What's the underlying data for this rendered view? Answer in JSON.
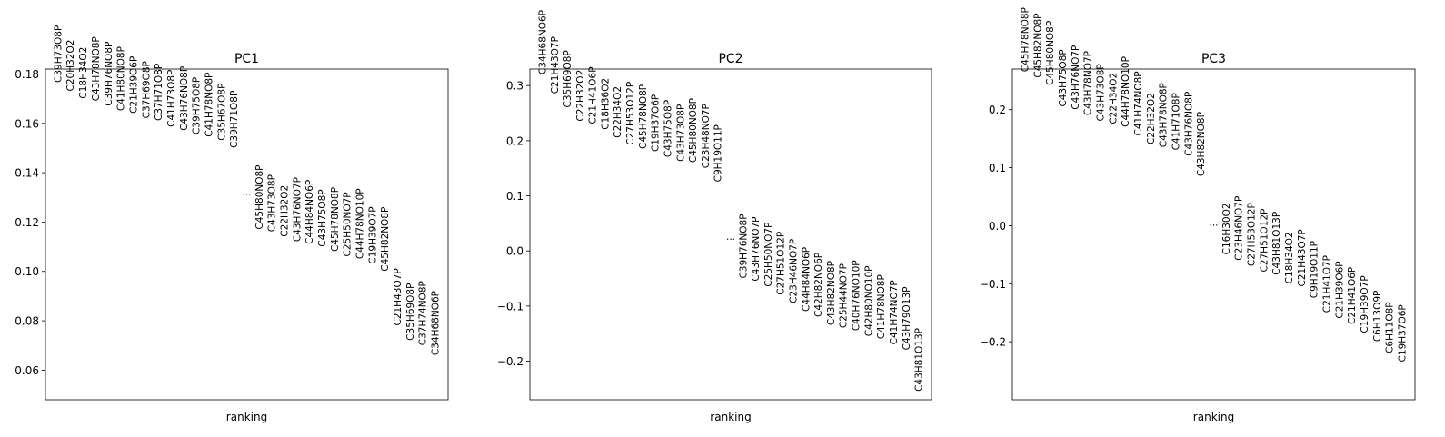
{
  "chart_data": [
    {
      "type": "scatter",
      "title": "PC1",
      "xlabel": "ranking",
      "ylim": [
        0.048,
        0.182
      ],
      "yticks": [
        0.06,
        0.08,
        0.1,
        0.12,
        0.14,
        0.16,
        0.18
      ],
      "ytick_labels": [
        "0.06",
        "0.08",
        "0.10",
        "0.12",
        "0.14",
        "0.16",
        "0.18"
      ],
      "ellipsis": {
        "label": "...",
        "value": 0.131
      },
      "top": [
        {
          "label": "C39H73O8P",
          "value": 0.1765
        },
        {
          "label": "C20H32O2",
          "value": 0.173
        },
        {
          "label": "C18H34O2",
          "value": 0.17
        },
        {
          "label": "C43H78NO8P",
          "value": 0.169
        },
        {
          "label": "C39H76NO8P",
          "value": 0.167
        },
        {
          "label": "C41H80NO8P",
          "value": 0.165
        },
        {
          "label": "C21H39O6P",
          "value": 0.164
        },
        {
          "label": "C37H69O8P",
          "value": 0.162
        },
        {
          "label": "C37H71O8P",
          "value": 0.161
        },
        {
          "label": "C41H73O8P",
          "value": 0.1585
        },
        {
          "label": "C43H76NO8P",
          "value": 0.157
        },
        {
          "label": "C39H75O8P",
          "value": 0.1555
        },
        {
          "label": "C41H78NO8P",
          "value": 0.1545
        },
        {
          "label": "C35H67O8P",
          "value": 0.153
        },
        {
          "label": "C39H71O8P",
          "value": 0.15
        }
      ],
      "bottom": [
        {
          "label": "C45H80NO8P",
          "value": 0.117
        },
        {
          "label": "C43H73O8P",
          "value": 0.116
        },
        {
          "label": "C22H32O2",
          "value": 0.114
        },
        {
          "label": "C43H76NO7P",
          "value": 0.112
        },
        {
          "label": "C44H84NO6P",
          "value": 0.111
        },
        {
          "label": "C43H75O8P",
          "value": 0.11
        },
        {
          "label": "C45H78NO8P",
          "value": 0.108
        },
        {
          "label": "C25H50NO7P",
          "value": 0.106
        },
        {
          "label": "C44H78NO10P",
          "value": 0.105
        },
        {
          "label": "C19H39O7P",
          "value": 0.103
        },
        {
          "label": "C45H82NO8P",
          "value": 0.1
        },
        {
          "label": "C21H43O7P",
          "value": 0.078
        },
        {
          "label": "C35H69O8P",
          "value": 0.072
        },
        {
          "label": "C37H74NO8P",
          "value": 0.07
        },
        {
          "label": "C34H68NO6P",
          "value": 0.066
        }
      ]
    },
    {
      "type": "scatter",
      "title": "PC2",
      "xlabel": "ranking",
      "ylim": [
        -0.27,
        0.33
      ],
      "yticks": [
        -0.2,
        -0.1,
        0.0,
        0.1,
        0.2,
        0.3
      ],
      "ytick_labels": [
        "−0.2",
        "−0.1",
        "0.0",
        "0.1",
        "0.2",
        "0.3"
      ],
      "ellipsis": {
        "label": "...",
        "value": 0.02
      },
      "top": [
        {
          "label": "C34H68NO6P",
          "value": 0.32
        },
        {
          "label": "C21H43O7P",
          "value": 0.285
        },
        {
          "label": "C35H69O8P",
          "value": 0.26
        },
        {
          "label": "C22H32O2",
          "value": 0.235
        },
        {
          "label": "C21H41O6P",
          "value": 0.23
        },
        {
          "label": "C18H36O2",
          "value": 0.22
        },
        {
          "label": "C22H34O2",
          "value": 0.205
        },
        {
          "label": "C27H53O12P",
          "value": 0.192
        },
        {
          "label": "C45H78NO8P",
          "value": 0.185
        },
        {
          "label": "C19H37O6P",
          "value": 0.18
        },
        {
          "label": "C43H75O8P",
          "value": 0.17
        },
        {
          "label": "C43H73O8P",
          "value": 0.162
        },
        {
          "label": "C45H80NO8P",
          "value": 0.16
        },
        {
          "label": "C23H48NO7P",
          "value": 0.15
        },
        {
          "label": "C9H19O11P",
          "value": 0.125
        }
      ],
      "bottom": [
        {
          "label": "C39H76NO8P",
          "value": -0.05
        },
        {
          "label": "C43H76NO7P",
          "value": -0.055
        },
        {
          "label": "C25H50NO7P",
          "value": -0.065
        },
        {
          "label": "C27H51O12P",
          "value": -0.08
        },
        {
          "label": "C23H46NO7P",
          "value": -0.095
        },
        {
          "label": "C44H84NO6P",
          "value": -0.11
        },
        {
          "label": "C42H82NO6P",
          "value": -0.12
        },
        {
          "label": "C43H82NO8P",
          "value": -0.135
        },
        {
          "label": "C25H44NO7P",
          "value": -0.14
        },
        {
          "label": "C40H76NO10P",
          "value": -0.145
        },
        {
          "label": "C42H80NO10P",
          "value": -0.155
        },
        {
          "label": "C41H78NO8P",
          "value": -0.16
        },
        {
          "label": "C41H74NO7P",
          "value": -0.17
        },
        {
          "label": "C43H79O13P",
          "value": -0.18
        },
        {
          "label": "C43H81O13P",
          "value": -0.255
        }
      ]
    },
    {
      "type": "scatter",
      "title": "PC3",
      "xlabel": "ranking",
      "ylim": [
        -0.3,
        0.27
      ],
      "yticks": [
        -0.2,
        -0.1,
        0.0,
        0.1,
        0.2
      ],
      "ytick_labels": [
        "−0.2",
        "−0.1",
        "0.0",
        "0.1",
        "0.2"
      ],
      "ellipsis": {
        "label": "...",
        "value": 0.0
      },
      "top": [
        {
          "label": "C45H78NO8P",
          "value": 0.265
        },
        {
          "label": "C45H82NO8P",
          "value": 0.255
        },
        {
          "label": "C45H80NO8P",
          "value": 0.242
        },
        {
          "label": "C43H75O8P",
          "value": 0.205
        },
        {
          "label": "C43H76NO7P",
          "value": 0.2
        },
        {
          "label": "C43H78NO7P",
          "value": 0.19
        },
        {
          "label": "C43H73O8P",
          "value": 0.18
        },
        {
          "label": "C22H34O2",
          "value": 0.175
        },
        {
          "label": "C44H78NO10P",
          "value": 0.17
        },
        {
          "label": "C41H74NO8P",
          "value": 0.155
        },
        {
          "label": "C22H32O2",
          "value": 0.14
        },
        {
          "label": "C43H78NO8P",
          "value": 0.135
        },
        {
          "label": "C41H71O8P",
          "value": 0.13
        },
        {
          "label": "C43H76NO8P",
          "value": 0.12
        },
        {
          "label": "C43H82NO8P",
          "value": 0.085
        }
      ],
      "bottom": [
        {
          "label": "C16H30O2",
          "value": -0.05
        },
        {
          "label": "C23H46NO7P",
          "value": -0.06
        },
        {
          "label": "C27H53O12P",
          "value": -0.07
        },
        {
          "label": "C27H51O12P",
          "value": -0.08
        },
        {
          "label": "C43H81O13P",
          "value": -0.085
        },
        {
          "label": "C18H34O2",
          "value": -0.1
        },
        {
          "label": "C21H43O7P",
          "value": -0.105
        },
        {
          "label": "C9H19O11P",
          "value": -0.125
        },
        {
          "label": "C21H41O7P",
          "value": -0.15
        },
        {
          "label": "C21H39O6P",
          "value": -0.16
        },
        {
          "label": "C21H41O6P",
          "value": -0.17
        },
        {
          "label": "C19H39O7P",
          "value": -0.185
        },
        {
          "label": "C6H13O9P",
          "value": -0.2
        },
        {
          "label": "C6H11O8P",
          "value": -0.22
        },
        {
          "label": "C19H37O6P",
          "value": -0.235
        }
      ]
    }
  ]
}
